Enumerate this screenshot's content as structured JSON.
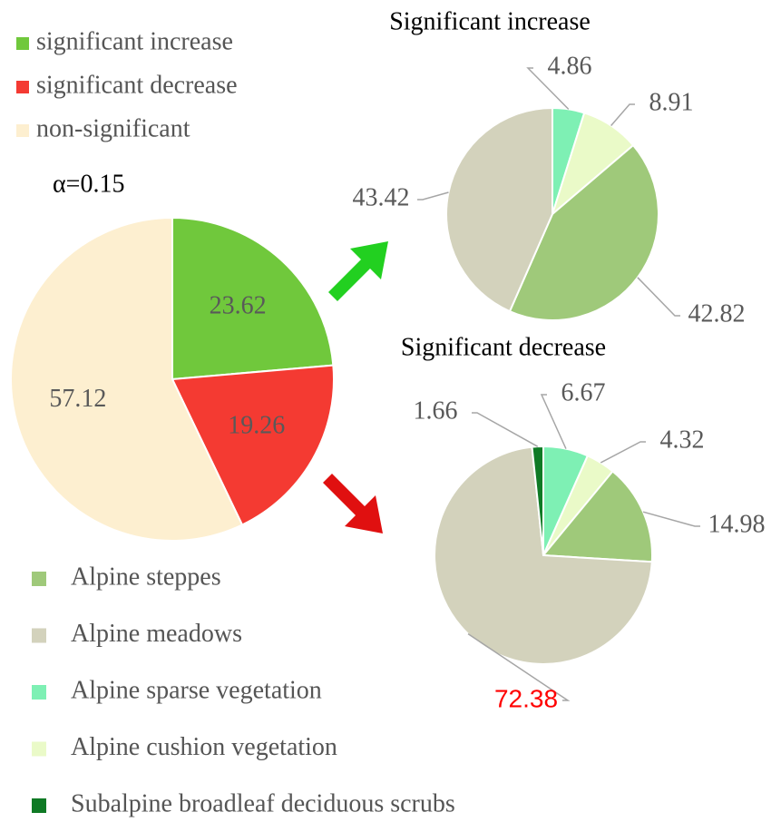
{
  "chart_data": [
    {
      "type": "pie",
      "annotation": "α=0.15",
      "categories": [
        "significant increase",
        "significant decrease",
        "non-significant"
      ],
      "values": [
        23.62,
        19.26,
        57.12
      ],
      "colors": [
        "#70c83c",
        "#f43a32",
        "#fdefd0"
      ]
    },
    {
      "type": "pie",
      "title": "Significant increase",
      "values": [
        4.86,
        8.91,
        42.82,
        43.42
      ],
      "colors": [
        "#7ef0b4",
        "#eafac8",
        "#9fc97a",
        "#d3d2bc"
      ]
    },
    {
      "type": "pie",
      "title": "Significant decrease",
      "values": [
        6.67,
        4.32,
        14.98,
        72.38,
        1.66
      ],
      "colors": [
        "#7ef0b4",
        "#eafac8",
        "#9fc97a",
        "#d3d2bc",
        "#0f7a25"
      ],
      "label_colors": [
        "#595959",
        "#595959",
        "#595959",
        "#ff0000",
        "#595959"
      ]
    }
  ],
  "legend": {
    "items": [
      {
        "name": "Alpine steppes",
        "color": "#9fc97a"
      },
      {
        "name": "Alpine meadows",
        "color": "#d3d2bc"
      },
      {
        "name": "Alpine sparse vegetation",
        "color": "#7ef0b4"
      },
      {
        "name": "Alpine cushion vegetation",
        "color": "#eafac8"
      },
      {
        "name": "Subalpine broadleaf deciduous scrubs",
        "color": "#0f7a25"
      }
    ]
  }
}
